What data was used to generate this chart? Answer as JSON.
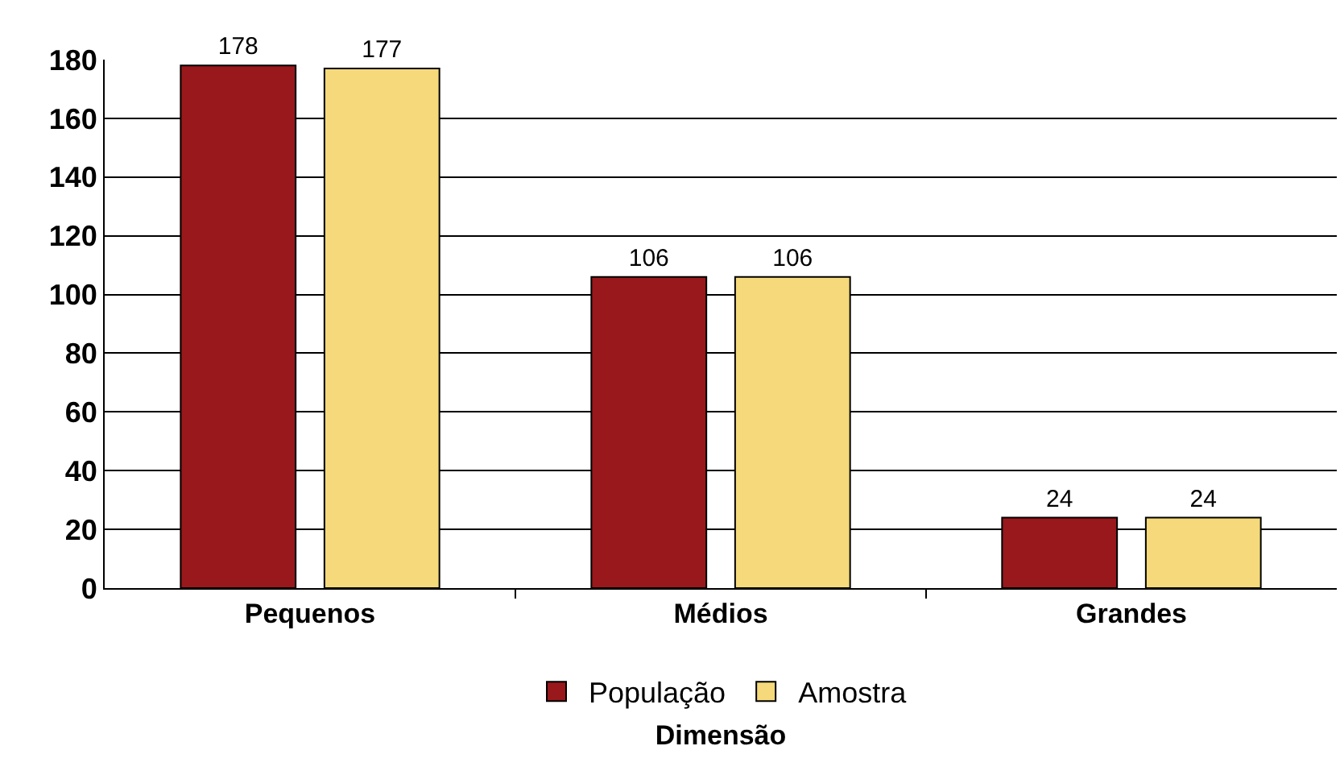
{
  "chart_data": {
    "type": "bar",
    "xlabel": "Dimensão",
    "categories": [
      "Pequenos",
      "Médios",
      "Grandes"
    ],
    "series": [
      {
        "name": "População",
        "color": "#98181c",
        "values": [
          178,
          106,
          24
        ]
      },
      {
        "name": "Amostra",
        "color": "#f5d97a",
        "values": [
          177,
          106,
          24
        ]
      }
    ],
    "ylim": [
      0,
      180
    ],
    "yticks": [
      0,
      20,
      40,
      60,
      80,
      100,
      120,
      140,
      160,
      180
    ],
    "grid": "y",
    "legend": "bottom",
    "data_labels": true
  }
}
